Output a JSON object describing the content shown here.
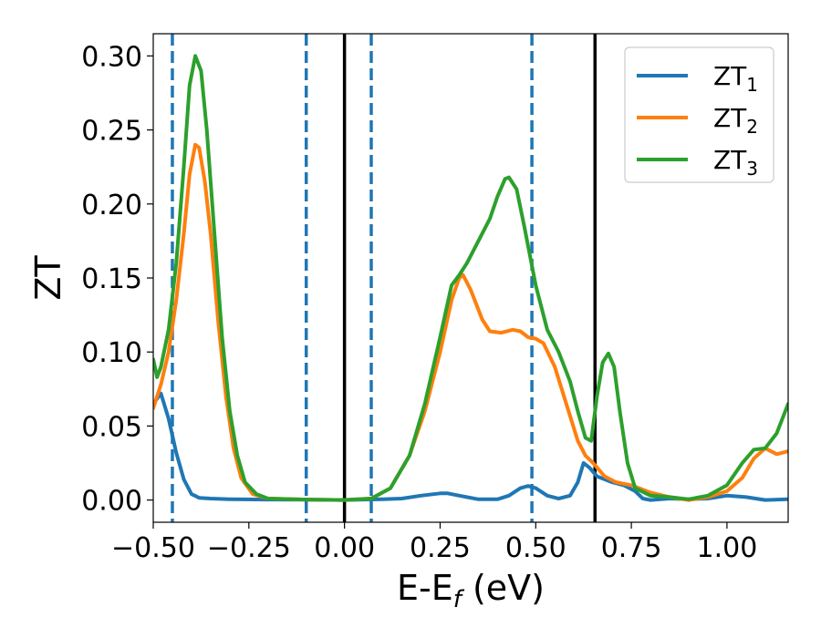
{
  "chart_data": {
    "type": "line",
    "title": "",
    "xlabel_main": "E-E",
    "xlabel_sub": "f",
    "xlabel_unit": " (eV)",
    "ylabel": "ZT",
    "xlim": [
      -0.5,
      1.16
    ],
    "ylim": [
      -0.015,
      0.315
    ],
    "xticks": [
      -0.5,
      -0.25,
      0.0,
      0.25,
      0.5,
      0.75,
      1.0
    ],
    "xtick_labels": [
      "−0.50",
      "−0.25",
      "0.00",
      "0.25",
      "0.50",
      "0.75",
      "1.00"
    ],
    "yticks": [
      0.0,
      0.05,
      0.1,
      0.15,
      0.2,
      0.25,
      0.3
    ],
    "ytick_labels": [
      "0.00",
      "0.05",
      "0.10",
      "0.15",
      "0.20",
      "0.25",
      "0.30"
    ],
    "legend_placement": "top-right",
    "vlines": [
      {
        "x": -0.45,
        "style": "dashed",
        "color": "#1f77b4"
      },
      {
        "x": -0.1,
        "style": "dashed",
        "color": "#1f77b4"
      },
      {
        "x": 0.0,
        "style": "solid",
        "color": "#000000"
      },
      {
        "x": 0.07,
        "style": "dashed",
        "color": "#1f77b4"
      },
      {
        "x": 0.49,
        "style": "dashed",
        "color": "#1f77b4"
      },
      {
        "x": 0.655,
        "style": "solid",
        "color": "#000000"
      }
    ],
    "series": [
      {
        "name": "ZT",
        "subscript": "1",
        "color": "#1f77b4",
        "points": [
          [
            -0.5,
            0.065
          ],
          [
            -0.48,
            0.072
          ],
          [
            -0.46,
            0.055
          ],
          [
            -0.44,
            0.032
          ],
          [
            -0.42,
            0.014
          ],
          [
            -0.4,
            0.004
          ],
          [
            -0.38,
            0.0015
          ],
          [
            -0.35,
            0.001
          ],
          [
            -0.3,
            0.0006
          ],
          [
            -0.2,
            0.0003
          ],
          [
            -0.1,
            0.0002
          ],
          [
            0.0,
            0.0
          ],
          [
            0.1,
            0.0005
          ],
          [
            0.15,
            0.001
          ],
          [
            0.2,
            0.003
          ],
          [
            0.25,
            0.0045
          ],
          [
            0.27,
            0.0045
          ],
          [
            0.3,
            0.003
          ],
          [
            0.35,
            0.0005
          ],
          [
            0.4,
            0.0005
          ],
          [
            0.43,
            0.003
          ],
          [
            0.46,
            0.008
          ],
          [
            0.48,
            0.0095
          ],
          [
            0.5,
            0.008
          ],
          [
            0.53,
            0.003
          ],
          [
            0.56,
            0.001
          ],
          [
            0.59,
            0.003
          ],
          [
            0.61,
            0.012
          ],
          [
            0.625,
            0.025
          ],
          [
            0.64,
            0.022
          ],
          [
            0.66,
            0.016
          ],
          [
            0.7,
            0.012
          ],
          [
            0.73,
            0.01
          ],
          [
            0.76,
            0.006
          ],
          [
            0.78,
            0.001
          ],
          [
            0.8,
            0.0
          ],
          [
            0.85,
            0.001
          ],
          [
            0.9,
            0.0005
          ],
          [
            0.95,
            0.001
          ],
          [
            1.0,
            0.003
          ],
          [
            1.05,
            0.002
          ],
          [
            1.1,
            0.0
          ],
          [
            1.16,
            0.0005
          ]
        ]
      },
      {
        "name": "ZT",
        "subscript": "2",
        "color": "#ff7f0e",
        "points": [
          [
            -0.5,
            0.062
          ],
          [
            -0.48,
            0.078
          ],
          [
            -0.46,
            0.1
          ],
          [
            -0.44,
            0.135
          ],
          [
            -0.42,
            0.18
          ],
          [
            -0.405,
            0.22
          ],
          [
            -0.39,
            0.24
          ],
          [
            -0.38,
            0.238
          ],
          [
            -0.365,
            0.215
          ],
          [
            -0.35,
            0.18
          ],
          [
            -0.33,
            0.12
          ],
          [
            -0.31,
            0.07
          ],
          [
            -0.29,
            0.035
          ],
          [
            -0.27,
            0.015
          ],
          [
            -0.24,
            0.004
          ],
          [
            -0.2,
            0.001
          ],
          [
            -0.1,
            0.0003
          ],
          [
            0.0,
            0.0
          ],
          [
            0.07,
            0.001
          ],
          [
            0.12,
            0.008
          ],
          [
            0.17,
            0.03
          ],
          [
            0.21,
            0.06
          ],
          [
            0.25,
            0.1
          ],
          [
            0.28,
            0.135
          ],
          [
            0.3,
            0.15
          ],
          [
            0.31,
            0.152
          ],
          [
            0.33,
            0.142
          ],
          [
            0.36,
            0.122
          ],
          [
            0.38,
            0.114
          ],
          [
            0.41,
            0.113
          ],
          [
            0.44,
            0.115
          ],
          [
            0.46,
            0.114
          ],
          [
            0.48,
            0.11
          ],
          [
            0.5,
            0.109
          ],
          [
            0.52,
            0.106
          ],
          [
            0.55,
            0.09
          ],
          [
            0.58,
            0.065
          ],
          [
            0.61,
            0.04
          ],
          [
            0.63,
            0.03
          ],
          [
            0.65,
            0.025
          ],
          [
            0.68,
            0.016
          ],
          [
            0.71,
            0.012
          ],
          [
            0.75,
            0.01
          ],
          [
            0.8,
            0.005
          ],
          [
            0.85,
            0.002
          ],
          [
            0.9,
            0.0
          ],
          [
            0.95,
            0.002
          ],
          [
            1.0,
            0.006
          ],
          [
            1.04,
            0.015
          ],
          [
            1.07,
            0.028
          ],
          [
            1.1,
            0.035
          ],
          [
            1.13,
            0.031
          ],
          [
            1.16,
            0.033
          ]
        ]
      },
      {
        "name": "ZT",
        "subscript": "3",
        "color": "#2ca02c",
        "points": [
          [
            -0.5,
            0.095
          ],
          [
            -0.49,
            0.083
          ],
          [
            -0.48,
            0.09
          ],
          [
            -0.46,
            0.115
          ],
          [
            -0.44,
            0.16
          ],
          [
            -0.42,
            0.225
          ],
          [
            -0.405,
            0.28
          ],
          [
            -0.39,
            0.3
          ],
          [
            -0.375,
            0.29
          ],
          [
            -0.36,
            0.25
          ],
          [
            -0.34,
            0.18
          ],
          [
            -0.32,
            0.11
          ],
          [
            -0.3,
            0.06
          ],
          [
            -0.28,
            0.03
          ],
          [
            -0.26,
            0.012
          ],
          [
            -0.23,
            0.004
          ],
          [
            -0.2,
            0.001
          ],
          [
            -0.1,
            0.0003
          ],
          [
            0.0,
            0.0
          ],
          [
            0.07,
            0.001
          ],
          [
            0.12,
            0.008
          ],
          [
            0.17,
            0.03
          ],
          [
            0.21,
            0.065
          ],
          [
            0.25,
            0.11
          ],
          [
            0.28,
            0.145
          ],
          [
            0.3,
            0.152
          ],
          [
            0.32,
            0.16
          ],
          [
            0.35,
            0.175
          ],
          [
            0.38,
            0.19
          ],
          [
            0.4,
            0.205
          ],
          [
            0.42,
            0.217
          ],
          [
            0.43,
            0.218
          ],
          [
            0.45,
            0.21
          ],
          [
            0.47,
            0.185
          ],
          [
            0.5,
            0.145
          ],
          [
            0.53,
            0.115
          ],
          [
            0.56,
            0.1
          ],
          [
            0.59,
            0.08
          ],
          [
            0.61,
            0.06
          ],
          [
            0.63,
            0.042
          ],
          [
            0.645,
            0.04
          ],
          [
            0.66,
            0.07
          ],
          [
            0.675,
            0.093
          ],
          [
            0.69,
            0.099
          ],
          [
            0.705,
            0.09
          ],
          [
            0.72,
            0.06
          ],
          [
            0.74,
            0.025
          ],
          [
            0.76,
            0.008
          ],
          [
            0.8,
            0.003
          ],
          [
            0.85,
            0.002
          ],
          [
            0.9,
            0.0005
          ],
          [
            0.95,
            0.003
          ],
          [
            1.0,
            0.01
          ],
          [
            1.04,
            0.025
          ],
          [
            1.07,
            0.034
          ],
          [
            1.1,
            0.035
          ],
          [
            1.13,
            0.045
          ],
          [
            1.16,
            0.065
          ]
        ]
      }
    ]
  }
}
